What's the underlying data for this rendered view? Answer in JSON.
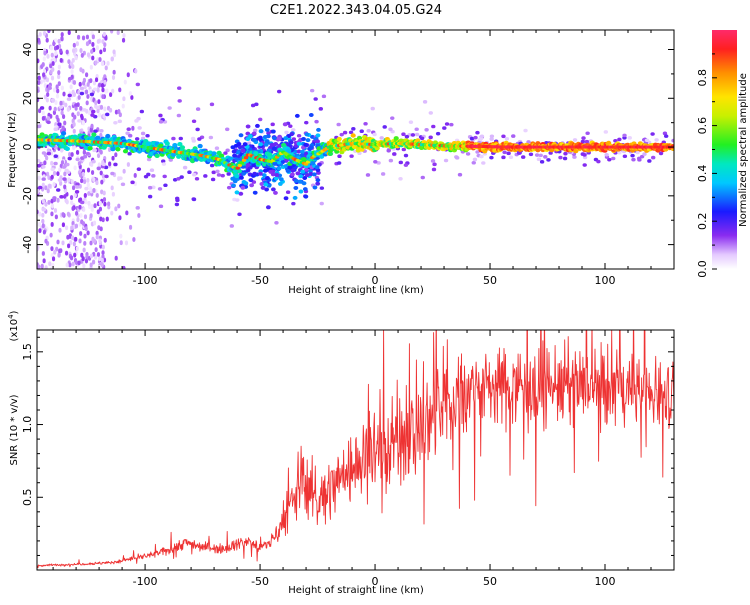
{
  "chart_data": [
    {
      "type": "heatmap",
      "title": "C2E1.2022.343.04.05.G24",
      "xlabel": "Height of straight line (km)",
      "ylabel": "Frequency (Hz)",
      "xlim": [
        -147,
        130
      ],
      "ylim": [
        -50,
        48
      ],
      "xticks": [
        -100,
        -50,
        0,
        50,
        100
      ],
      "yticks": [
        -40,
        -20,
        0,
        20,
        40
      ],
      "colorbar": {
        "label": "Normalized spectral amplitude",
        "range": [
          0,
          1
        ],
        "ticks": [
          0.0,
          0.2,
          0.4,
          0.6,
          0.8
        ],
        "colormap": "rainbow (white-violet-blue-cyan-green-yellow-red)"
      },
      "ridge": {
        "x": [
          -147,
          -130,
          -110,
          -90,
          -75,
          -68,
          -60,
          -55,
          -50,
          -45,
          -40,
          -35,
          -30,
          -27,
          -25,
          -20,
          -10,
          0,
          10,
          30,
          60,
          130
        ],
        "y": [
          3,
          2.5,
          1.5,
          -1.5,
          -3.5,
          -5,
          -9,
          -3,
          -5,
          -6,
          -2,
          -5,
          -7,
          -4,
          -3,
          0,
          1.5,
          1,
          1.5,
          0.5,
          0,
          0
        ]
      }
    },
    {
      "type": "line",
      "title": "",
      "xlabel": "Height of straight line (km)",
      "ylabel": "SNR (10 * v/v)",
      "y_multiplier_label": "(x10",
      "y_multiplier_exp": "4",
      "xlim": [
        -147,
        130
      ],
      "ylim": [
        0,
        16500
      ],
      "xticks": [
        -100,
        -50,
        0,
        50,
        100
      ],
      "yticks": [
        5000,
        10000,
        15000
      ],
      "ytick_labels": [
        "0.5",
        "1.0",
        "1.5"
      ],
      "series": [
        {
          "color": "#ee3333",
          "x": [
            -147,
            -130,
            -115,
            -105,
            -95,
            -88,
            -82,
            -75,
            -70,
            -65,
            -60,
            -55,
            -50,
            -45,
            -42,
            -38,
            -35,
            -32,
            -30,
            -28,
            -25,
            -22,
            -20,
            -15,
            -10,
            -5,
            0,
            5,
            10,
            15,
            20,
            25,
            30,
            35,
            40,
            45,
            50,
            55,
            60,
            70,
            80,
            90,
            100,
            110,
            120,
            130
          ],
          "y": [
            300,
            400,
            500,
            800,
            1100,
            1500,
            1900,
            1600,
            1500,
            1500,
            1800,
            2000,
            1500,
            2000,
            2800,
            3800,
            5000,
            6500,
            6000,
            5500,
            4500,
            5000,
            5500,
            6500,
            7000,
            7800,
            8300,
            8500,
            9000,
            9500,
            10000,
            10400,
            11200,
            11900,
            12500,
            12700,
            12700,
            12600,
            12800,
            12700,
            12700,
            12600,
            12500,
            12400,
            12300,
            12400
          ]
        }
      ]
    }
  ]
}
